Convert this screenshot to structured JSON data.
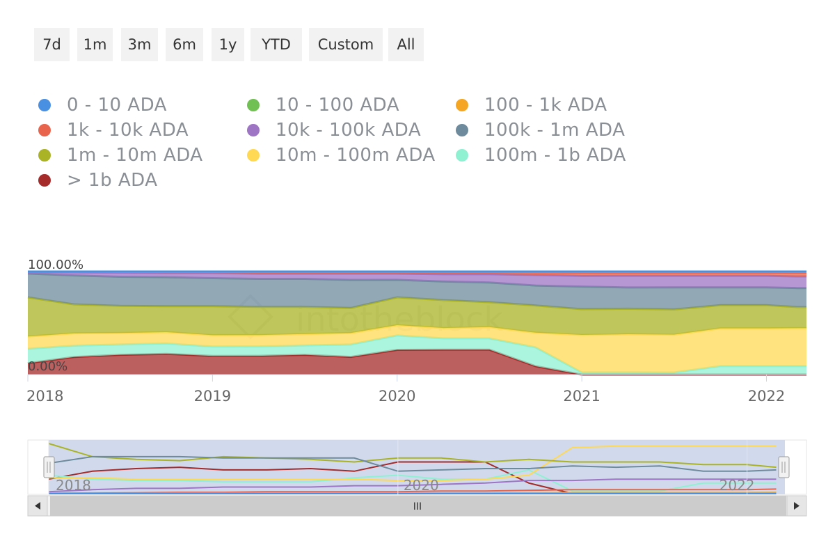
{
  "range_selector": {
    "buttons": [
      {
        "label": "7d",
        "name": "range-7d-button"
      },
      {
        "label": "1m",
        "name": "range-1m-button"
      },
      {
        "label": "3m",
        "name": "range-3m-button"
      },
      {
        "label": "6m",
        "name": "range-6m-button"
      },
      {
        "label": "1y",
        "name": "range-1y-button"
      },
      {
        "label": "YTD",
        "name": "range-ytd-button"
      },
      {
        "label": "Custom",
        "name": "range-custom-button"
      },
      {
        "label": "All",
        "name": "range-all-button"
      }
    ]
  },
  "watermark": "intotheblock",
  "navigator": {
    "ticks": [
      "2018",
      "2020",
      "2022"
    ],
    "scroll_thumb_label": "III"
  },
  "chart_data": {
    "type": "area",
    "stacking": "percent",
    "ylim": [
      0,
      100
    ],
    "ytick_labels": [
      "100.00%",
      "0.00%"
    ],
    "xtick_labels": [
      "2018",
      "2019",
      "2020",
      "2021",
      "2022"
    ],
    "x": [
      "2018-01",
      "2018-04",
      "2018-07",
      "2018-10",
      "2019-01",
      "2019-04",
      "2019-07",
      "2019-10",
      "2020-01",
      "2020-04",
      "2020-07",
      "2020-10",
      "2021-01",
      "2021-04",
      "2021-07",
      "2021-10",
      "2022-01",
      "2022-03"
    ],
    "legend_position": "top",
    "series": [
      {
        "name": "> 1b ADA",
        "color": "#a52a2a",
        "values": [
          11,
          17,
          19,
          20,
          18,
          18,
          19,
          17,
          24,
          24,
          24,
          8,
          0,
          0,
          0,
          0,
          0,
          0
        ]
      },
      {
        "name": "100m - 1b ADA",
        "color": "#8ff0d2",
        "values": [
          14,
          11,
          10,
          10,
          9,
          9,
          9,
          12,
          14,
          11,
          11,
          18,
          2,
          2,
          2,
          8,
          8,
          8
        ]
      },
      {
        "name": "10m - 100m ADA",
        "color": "#ffd954",
        "values": [
          12,
          12,
          11,
          11,
          11,
          11,
          11,
          11,
          10,
          10,
          11,
          14,
          35,
          36,
          36,
          36,
          36,
          36
        ]
      },
      {
        "name": "1m - 10m ADA",
        "color": "#aab325",
        "values": [
          38,
          28,
          26,
          25,
          28,
          27,
          26,
          24,
          27,
          27,
          24,
          26,
          24,
          24,
          24,
          22,
          22,
          20
        ]
      },
      {
        "name": "100k - 1m ADA",
        "color": "#6d8b9c",
        "values": [
          23,
          28,
          28,
          28,
          27,
          27,
          27,
          27,
          17,
          18,
          19,
          19,
          21,
          20,
          21,
          17,
          17,
          18
        ]
      },
      {
        "name": "10k - 100k ADA",
        "color": "#9e74c4",
        "values": [
          1.5,
          3,
          4,
          4,
          5,
          5,
          5,
          6,
          6,
          7,
          8,
          10,
          10,
          11,
          11,
          11,
          11,
          11
        ]
      },
      {
        "name": "1k - 10k ADA",
        "color": "#e8644c",
        "values": [
          0.3,
          0.5,
          0.7,
          1,
          1,
          1.5,
          1.5,
          1.5,
          1.5,
          2,
          2,
          2.5,
          3,
          3,
          3,
          3,
          3,
          3.5
        ]
      },
      {
        "name": "100 - 1k ADA",
        "color": "#f5a623",
        "values": [
          0.1,
          0.2,
          0.2,
          0.3,
          0.3,
          0.4,
          0.4,
          0.4,
          0.4,
          0.5,
          0.5,
          0.6,
          0.8,
          0.8,
          0.8,
          0.8,
          0.8,
          0.9
        ]
      },
      {
        "name": "10 - 100 ADA",
        "color": "#71c053",
        "values": [
          0.05,
          0.05,
          0.1,
          0.1,
          0.1,
          0.1,
          0.1,
          0.1,
          0.1,
          0.1,
          0.1,
          0.2,
          0.2,
          0.2,
          0.2,
          0.2,
          0.2,
          0.2
        ]
      },
      {
        "name": "0 - 10 ADA",
        "color": "#4a90e2",
        "values": [
          0.01,
          0.01,
          0.01,
          0.01,
          0.01,
          0.01,
          0.01,
          0.01,
          0.01,
          0.01,
          0.01,
          0.02,
          0.02,
          0.02,
          0.02,
          0.02,
          0.02,
          0.02
        ]
      }
    ],
    "legend_order": [
      "0 - 10 ADA",
      "10 - 100 ADA",
      "100 - 1k ADA",
      "1k - 10k ADA",
      "10k - 100k ADA",
      "100k - 1m ADA",
      "1m - 10m ADA",
      "10m - 100m ADA",
      "100m - 1b ADA",
      "> 1b ADA"
    ]
  }
}
